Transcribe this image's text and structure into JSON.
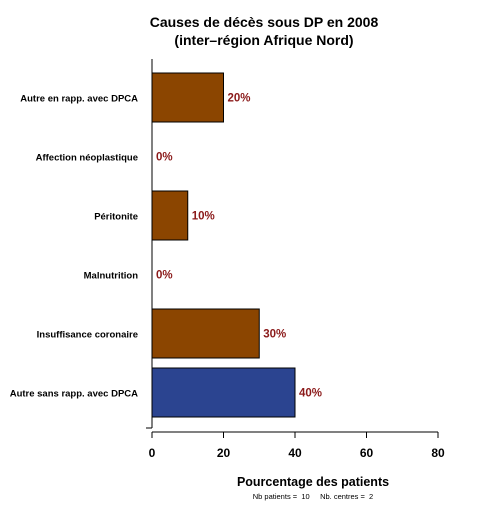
{
  "chart_data": {
    "type": "bar",
    "orientation": "horizontal",
    "title": [
      "Causes de décès sous DP en 2008",
      "(inter–région Afrique Nord)"
    ],
    "xlabel": "Pourcentage des patients",
    "footnote": "Nb patients =  10     Nb. centres =  2",
    "xlim": [
      0,
      80
    ],
    "xticks": [
      0,
      20,
      40,
      60,
      80
    ],
    "categories": [
      "Autre en rapp. avec DPCA",
      "Affection néoplastique",
      "Péritonite",
      "Malnutrition",
      "Insuffisance coronaire",
      "Autre sans rapp. avec DPCA"
    ],
    "values": [
      20,
      0,
      10,
      0,
      30,
      40
    ],
    "value_labels": [
      "20%",
      "0%",
      "10%",
      "0%",
      "30%",
      "40%"
    ],
    "bar_colors": [
      "#8b4500",
      "#8b4500",
      "#8b4500",
      "#8b4500",
      "#8b4500",
      "#2b4490"
    ],
    "label_color": "#8b1a1a",
    "grid": false,
    "legend": "none"
  }
}
